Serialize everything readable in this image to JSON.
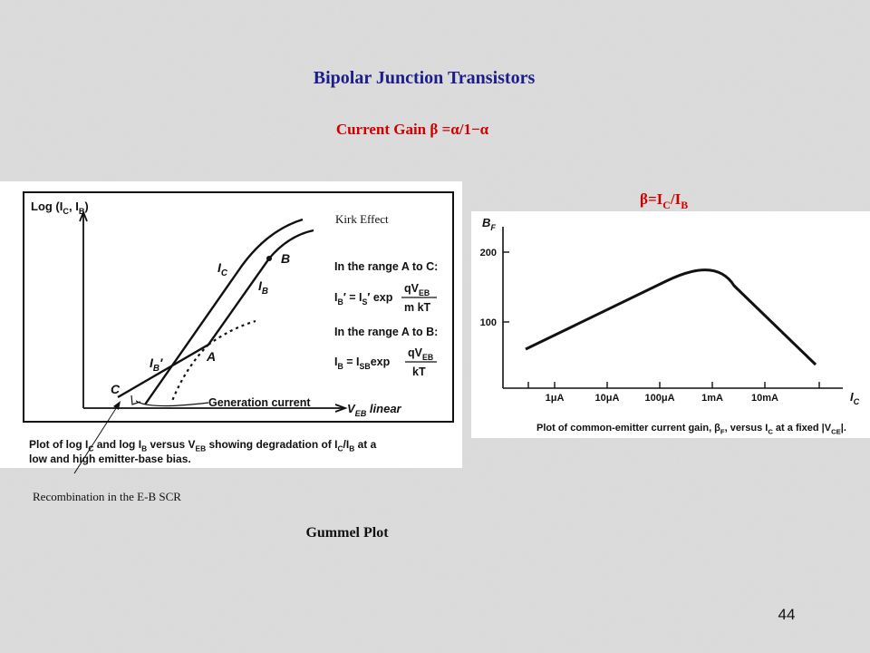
{
  "header": {
    "title": "Bipolar Junction Transistors",
    "subtitle": "Current Gain β =α/1−α"
  },
  "gummel": {
    "y_axis_label": [
      "Log (I",
      "C",
      ", I",
      "B",
      ")"
    ],
    "ic_label": [
      "I",
      "C"
    ],
    "ib_label": [
      "I",
      "B"
    ],
    "ib_prime_label": [
      "I",
      "B",
      "′"
    ],
    "point_a": "A",
    "point_b": "B",
    "point_c": "C",
    "range_ac": "In the range A to C:",
    "eq_ac_lhs": [
      "I",
      "B",
      "′ = I",
      "S",
      "′ exp"
    ],
    "eq_ac_num": [
      "qV",
      "EB"
    ],
    "eq_ac_den": "m kT",
    "range_ab": "In the range A to B:",
    "eq_ab_lhs": [
      "I",
      "B",
      " = I",
      "SB",
      "exp"
    ],
    "eq_ab_num": [
      "qV",
      "EB"
    ],
    "eq_ab_den": "kT",
    "generation_current": "Generation current",
    "x_axis_label": [
      "V",
      "EB",
      " linear"
    ],
    "caption_line1": [
      "Plot of log I",
      "C",
      " and log I",
      "B",
      " versus V",
      "EB",
      " showing degradation of I",
      "C",
      "/I",
      "B",
      " at a"
    ],
    "caption_line2": "low and high emitter-base bias."
  },
  "annotations": {
    "kirk": "Kirk Effect",
    "recombination": "Recombination in the E-B SCR",
    "gummel_title": "Gummel Plot"
  },
  "gain_plot": {
    "formula": [
      "β=I",
      "C",
      "/I",
      "B"
    ],
    "y_axis_label": [
      "B",
      "F"
    ],
    "yticks": [
      "200",
      "100"
    ],
    "xticks": [
      "1μA",
      "10μA",
      "100μA",
      "1mA",
      "10mA"
    ],
    "x_axis_label": [
      "I",
      "C"
    ],
    "caption": [
      "Plot of common-emitter current gain, β",
      "F",
      ", versus I",
      "C",
      " at a fixed |V",
      "CE",
      "|."
    ]
  },
  "page_number": "44"
}
